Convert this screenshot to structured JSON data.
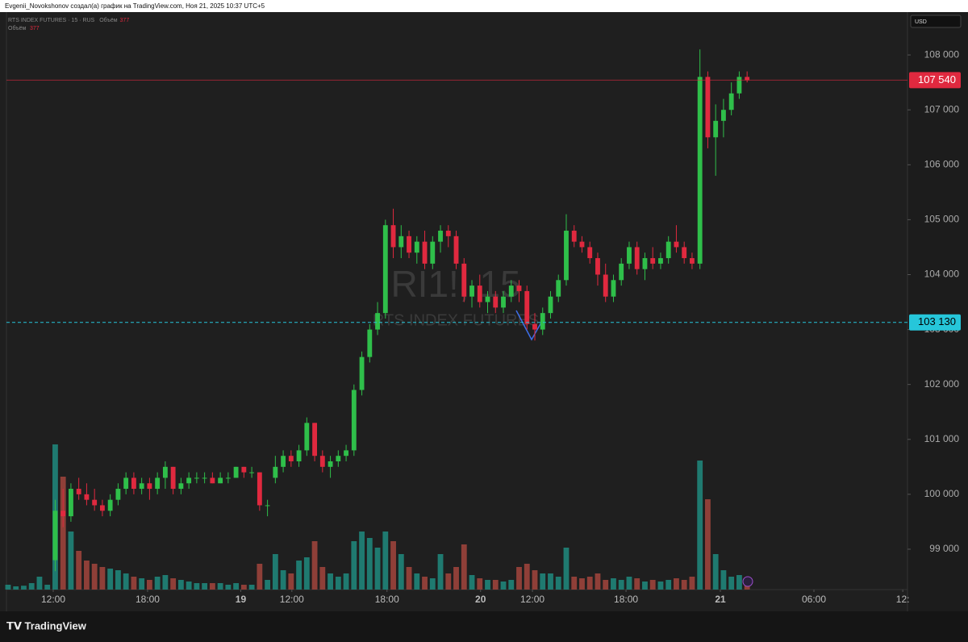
{
  "header": {
    "credit": "Evgenii_Novokshonov создал(а) график на TradingView.com, Ноя 21, 2025 10:37 UTC+5",
    "currency": "USD"
  },
  "chart_data": {
    "type": "candlestick",
    "title": "RTS INDEX FUTURES · 15 · RUS",
    "volume_label": "Объём",
    "volume_value": "377",
    "watermark": "RI1!, 15",
    "watermark_sub": "RTS INDEX FUTURES",
    "up_color": "#2fbf4a",
    "down_color": "#e0293f",
    "vol_up_color": "#1f7a70",
    "vol_down_color": "#8f3f38",
    "xlim": [
      -0.2,
      114.4
    ],
    "xticks": [
      {
        "value": 5.75,
        "label": "12:00"
      },
      {
        "value": 17.75,
        "label": "18:00"
      },
      {
        "value": 29.6,
        "label": "19"
      },
      {
        "value": 36.1,
        "label": "12:00"
      },
      {
        "value": 48.2,
        "label": "18:00"
      },
      {
        "value": 60.1,
        "label": "20"
      },
      {
        "value": 66.7,
        "label": "12:00"
      },
      {
        "value": 78.6,
        "label": "18:00"
      },
      {
        "value": 90.6,
        "label": "21"
      },
      {
        "value": 102.5,
        "label": "06:00"
      },
      {
        "value": 113.8,
        "label": "12:"
      }
    ],
    "ylim": [
      98265,
      108780
    ],
    "yticks": [
      {
        "value": 99000,
        "label": "99 000"
      },
      {
        "value": 100000,
        "label": "100 000"
      },
      {
        "value": 101000,
        "label": "101 000"
      },
      {
        "value": 102000,
        "label": "102 000"
      },
      {
        "value": 103000,
        "label": "103 000"
      },
      {
        "value": 104000,
        "label": "104 000"
      },
      {
        "value": 105000,
        "label": "105 000"
      },
      {
        "value": 106000,
        "label": "106 000"
      },
      {
        "value": 107000,
        "label": "107 000"
      },
      {
        "value": 108000,
        "label": "108 000"
      }
    ],
    "price_lines": [
      {
        "value": 107540,
        "label": "107 540",
        "color": "#e0293f",
        "dashed": false
      },
      {
        "value": 103130,
        "label": "103 130",
        "color": "#26c6da",
        "dashed": true
      }
    ],
    "ohlc": [
      null,
      null,
      null,
      null,
      null,
      null,
      [
        98800,
        99900,
        98600,
        99700
      ],
      [
        99700,
        100100,
        99400,
        99600
      ],
      [
        99600,
        100200,
        99500,
        100100
      ],
      [
        100100,
        100300,
        99900,
        100000
      ],
      [
        100000,
        100200,
        99800,
        99900
      ],
      [
        99900,
        100100,
        99700,
        99800
      ],
      [
        99800,
        99900,
        99600,
        99700
      ],
      [
        99700,
        100000,
        99600,
        99900
      ],
      [
        99900,
        100200,
        99800,
        100100
      ],
      [
        100100,
        100400,
        100000,
        100300
      ],
      [
        100300,
        100400,
        100000,
        100100
      ],
      [
        100100,
        100300,
        100000,
        100200
      ],
      [
        100200,
        100300,
        99900,
        100100
      ],
      [
        100100,
        100400,
        100000,
        100300
      ],
      [
        100300,
        100600,
        100100,
        100500
      ],
      [
        100500,
        100500,
        100000,
        100100
      ],
      [
        100100,
        100300,
        100000,
        100200
      ],
      [
        100200,
        100400,
        100100,
        100300
      ],
      [
        100300,
        100400,
        100200,
        100300
      ],
      [
        100300,
        100400,
        100200,
        100300
      ],
      [
        100300,
        100400,
        100200,
        100200
      ],
      [
        100200,
        100400,
        100200,
        100300
      ],
      [
        100300,
        100400,
        100200,
        100300
      ],
      [
        100300,
        100500,
        100300,
        100500
      ],
      [
        100500,
        100500,
        100300,
        100400
      ],
      [
        100400,
        100500,
        100300,
        100400
      ],
      [
        100400,
        100400,
        99700,
        99800
      ],
      [
        99800,
        99900,
        99600,
        99800
      ],
      [
        100300,
        100700,
        100200,
        100500
      ],
      [
        100500,
        100800,
        100400,
        100700
      ],
      [
        100700,
        100800,
        100500,
        100600
      ],
      [
        100600,
        100900,
        100500,
        100800
      ],
      [
        100800,
        101400,
        100700,
        101300
      ],
      [
        101300,
        101300,
        100600,
        100700
      ],
      [
        100700,
        100800,
        100400,
        100500
      ],
      [
        100500,
        100700,
        100300,
        100600
      ],
      [
        100600,
        100800,
        100500,
        100700
      ],
      [
        100700,
        100900,
        100600,
        100800
      ],
      [
        100800,
        102000,
        100700,
        101900
      ],
      [
        101900,
        102600,
        101800,
        102500
      ],
      [
        102500,
        103100,
        102400,
        103000
      ],
      [
        103000,
        103500,
        102900,
        103300
      ],
      [
        103300,
        105000,
        103200,
        104900
      ],
      [
        104900,
        105200,
        104300,
        104500
      ],
      [
        104500,
        104900,
        104300,
        104700
      ],
      [
        104700,
        104800,
        104300,
        104400
      ],
      [
        104400,
        104700,
        104200,
        104600
      ],
      [
        104600,
        104800,
        104100,
        104200
      ],
      [
        104200,
        104700,
        104100,
        104600
      ],
      [
        104600,
        104900,
        104400,
        104800
      ],
      [
        104800,
        104900,
        104500,
        104700
      ],
      [
        104700,
        104800,
        104100,
        104200
      ],
      [
        104200,
        104300,
        103500,
        103600
      ],
      [
        103600,
        103900,
        103400,
        103800
      ],
      [
        103800,
        104000,
        103400,
        103500
      ],
      [
        103500,
        103700,
        103300,
        103600
      ],
      [
        103600,
        103700,
        103300,
        103400
      ],
      [
        103400,
        103700,
        103300,
        103600
      ],
      [
        103600,
        103900,
        103500,
        103800
      ],
      [
        103800,
        103900,
        103500,
        103700
      ],
      [
        103700,
        103800,
        103000,
        103100
      ],
      [
        103100,
        103300,
        102800,
        103000
      ],
      [
        103000,
        103400,
        102900,
        103300
      ],
      [
        103300,
        103700,
        103200,
        103600
      ],
      [
        103600,
        104000,
        103500,
        103900
      ],
      [
        103900,
        105100,
        103800,
        104800
      ],
      [
        104800,
        104900,
        104500,
        104600
      ],
      [
        104600,
        104700,
        104400,
        104500
      ],
      [
        104500,
        104600,
        104200,
        104300
      ],
      [
        104300,
        104400,
        103800,
        104000
      ],
      [
        104000,
        104200,
        103500,
        103600
      ],
      [
        103600,
        104000,
        103500,
        103900
      ],
      [
        103900,
        104300,
        103800,
        104200
      ],
      [
        104200,
        104600,
        104100,
        104500
      ],
      [
        104500,
        104600,
        104000,
        104100
      ],
      [
        104100,
        104400,
        103900,
        104300
      ],
      [
        104300,
        104500,
        104100,
        104200
      ],
      [
        104200,
        104400,
        104100,
        104300
      ],
      [
        104300,
        104700,
        104200,
        104600
      ],
      [
        104600,
        104900,
        104400,
        104500
      ],
      [
        104500,
        104600,
        104200,
        104300
      ],
      [
        104300,
        104400,
        104100,
        104200
      ],
      [
        104200,
        108100,
        104100,
        107600
      ],
      [
        107600,
        107700,
        106300,
        106500
      ],
      [
        106500,
        107100,
        105800,
        106800
      ],
      [
        106800,
        107200,
        106500,
        107000
      ],
      [
        107000,
        107500,
        106900,
        107300
      ],
      [
        107300,
        107700,
        107200,
        107600
      ],
      [
        107600,
        107700,
        107500,
        107540
      ]
    ],
    "volume": [
      150,
      100,
      120,
      200,
      400,
      150,
      4500,
      3500,
      1800,
      1200,
      900,
      800,
      700,
      650,
      600,
      500,
      400,
      350,
      300,
      400,
      450,
      350,
      300,
      250,
      200,
      200,
      200,
      200,
      150,
      200,
      150,
      150,
      800,
      300,
      1100,
      600,
      500,
      900,
      1000,
      1500,
      700,
      500,
      400,
      500,
      1500,
      1800,
      1600,
      1300,
      1800,
      1500,
      1100,
      700,
      500,
      400,
      350,
      1100,
      500,
      700,
      1400,
      450,
      350,
      300,
      300,
      250,
      300,
      700,
      800,
      600,
      500,
      500,
      400,
      1300,
      400,
      350,
      400,
      500,
      300,
      350,
      300,
      400,
      350,
      250,
      300,
      250,
      300,
      350,
      300,
      400,
      4000,
      2800,
      1100,
      600,
      400,
      450,
      377
    ]
  }
}
